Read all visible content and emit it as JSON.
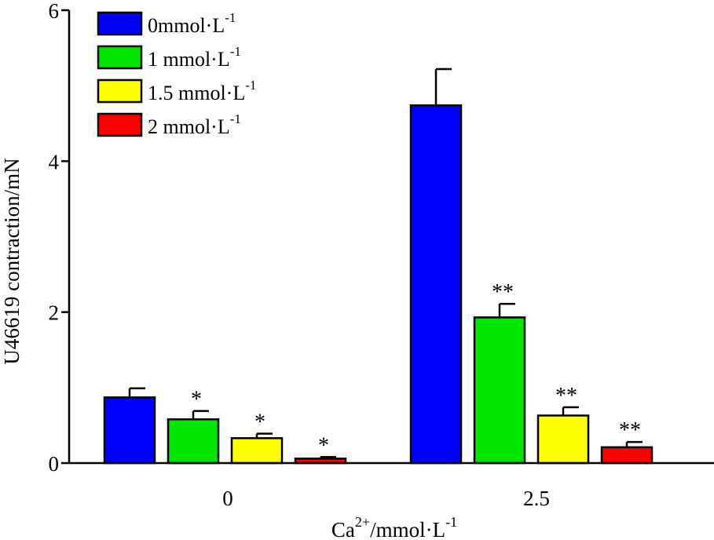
{
  "chart_data": {
    "type": "bar",
    "title": "",
    "xlabel": "Ca2+/mmol·L-1",
    "xlabel_parts": {
      "base": "Ca",
      "sup1": "2+",
      "mid": "/mmol·L",
      "sup2": "-1"
    },
    "ylabel": "U46619 contraction/mN",
    "ylim": [
      0,
      6
    ],
    "yticks": [
      "0",
      "2",
      "4",
      "6"
    ],
    "ytick_values": [
      0,
      2,
      4,
      6
    ],
    "categories": [
      "0",
      "2.5"
    ],
    "legend_position": "top-left",
    "series": [
      {
        "name": "0mmol·L-1",
        "label_base": "0mmol·L",
        "label_sup": "-1",
        "color": "#0000ff",
        "values": [
          0.87,
          4.74
        ],
        "errors": [
          0.12,
          0.48
        ],
        "significance": [
          "",
          ""
        ]
      },
      {
        "name": "1 mmol·L-1",
        "label_base": "1 mmol·L",
        "label_sup": "-1",
        "color": "#00e600",
        "values": [
          0.58,
          1.93
        ],
        "errors": [
          0.11,
          0.18
        ],
        "significance": [
          "*",
          "**"
        ]
      },
      {
        "name": "1.5 mmol·L-1",
        "label_base": "1.5 mmol·L",
        "label_sup": "-1",
        "color": "#ffff00",
        "values": [
          0.33,
          0.63
        ],
        "errors": [
          0.06,
          0.11
        ],
        "significance": [
          "*",
          "**"
        ]
      },
      {
        "name": "2 mmol·L-1",
        "label_base": "2 mmol·L",
        "label_sup": "-1",
        "color": "#ff0000",
        "values": [
          0.06,
          0.21
        ],
        "errors": [
          0.02,
          0.07
        ],
        "significance": [
          "*",
          "**"
        ]
      }
    ]
  }
}
